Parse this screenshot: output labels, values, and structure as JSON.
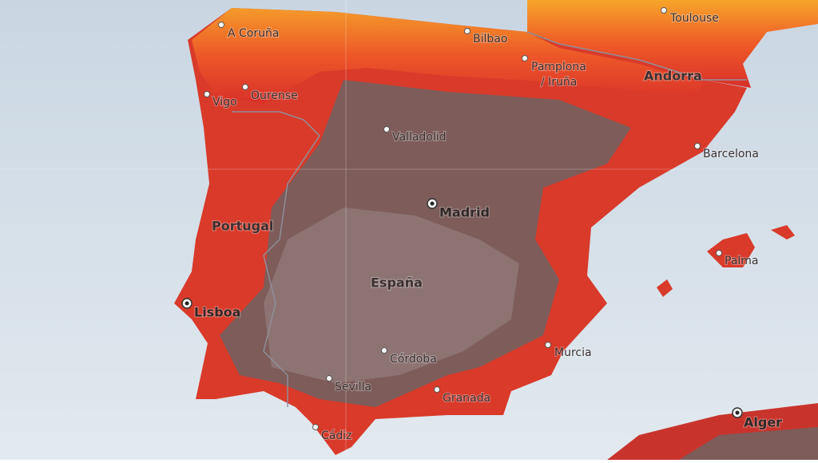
{
  "countries": [
    "Portugal",
    "España",
    "Andorra"
  ],
  "cities": [
    "A Coruña",
    "Bilbao",
    "Toulouse",
    "Pamplona",
    "/ Iruña",
    "Ourense",
    "Vigo",
    "Valladolid",
    "Barcelona",
    "Palma",
    "Murcia",
    "Córdoba",
    "Sevilla",
    "Granada",
    "Cádiz"
  ],
  "capitals": [
    "Madrid",
    "Lisboa",
    "Alger"
  ]
}
